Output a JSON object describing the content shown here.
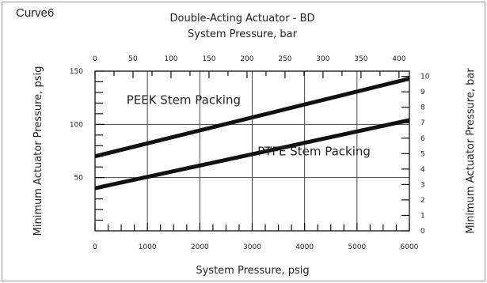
{
  "figure_label": "Curve6",
  "chart_data": {
    "type": "line",
    "title": "Double-Acting Actuator - BD",
    "x_top_label": "System Pressure, bar",
    "x_bottom_label": "System Pressure, psig",
    "y_left_label": "Minimum Actuator Pressure, psig",
    "y_right_label": "Minimum Actuator Pressure, bar",
    "x_bottom_range": [
      0,
      6000
    ],
    "x_bottom_ticks": [
      "0",
      "1000",
      "2000",
      "3000",
      "4000",
      "5000",
      "6000"
    ],
    "x_top_range_bar": [
      0,
      413.7
    ],
    "x_top_ticks": [
      "0",
      "50",
      "100",
      "150",
      "200",
      "250",
      "300",
      "350",
      "400"
    ],
    "y_left_range": [
      0,
      150
    ],
    "y_left_ticks": [
      "50",
      "100",
      "150"
    ],
    "y_right_range_bar": [
      0,
      10.34
    ],
    "y_right_ticks": [
      "0",
      "1",
      "2",
      "3",
      "4",
      "5",
      "6",
      "7",
      "8",
      "9",
      "10"
    ],
    "grid": true,
    "series": [
      {
        "name": "PEEK Stem Packing",
        "x": [
          0,
          6000
        ],
        "y": [
          70,
          143
        ]
      },
      {
        "name": "PTFE Stem Packing",
        "x": [
          0,
          6000
        ],
        "y": [
          40,
          104
        ]
      }
    ],
    "line_color": "#111111"
  }
}
